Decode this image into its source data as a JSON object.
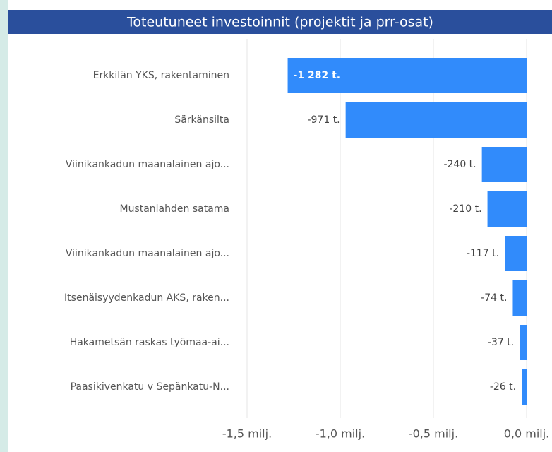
{
  "chart_data": {
    "type": "bar",
    "orientation": "horizontal",
    "title": "Toteutuneet investoinnit (projektit ja prr-osat)",
    "categories": [
      "Erkkilän YKS, rakentaminen",
      "Särkänsilta",
      "Viinikankadun maanalainen ajo...",
      "Mustanlahden satama",
      "Viinikankadun maanalainen ajo...",
      "Itsenäisyydenkadun AKS, raken...",
      "Hakametsän raskas työmaa-ai...",
      "Paasikivenkatu v Sepänkatu-N..."
    ],
    "values": [
      -1282,
      -971,
      -240,
      -210,
      -117,
      -74,
      -37,
      -26
    ],
    "value_labels": [
      "-1 282 t.",
      "-971 t.",
      "-240 t.",
      "-210 t.",
      "-117 t.",
      "-74 t.",
      "-37 t.",
      "-26 t."
    ],
    "color": "#318bfb",
    "xlim": [
      -1500,
      0
    ],
    "xticks": [
      {
        "value": -1500,
        "label": "-1,5 milj."
      },
      {
        "value": -1000,
        "label": "-1,0 milj."
      },
      {
        "value": -500,
        "label": "-0,5 milj."
      },
      {
        "value": 0,
        "label": "0,0 milj."
      }
    ],
    "grid": true
  }
}
